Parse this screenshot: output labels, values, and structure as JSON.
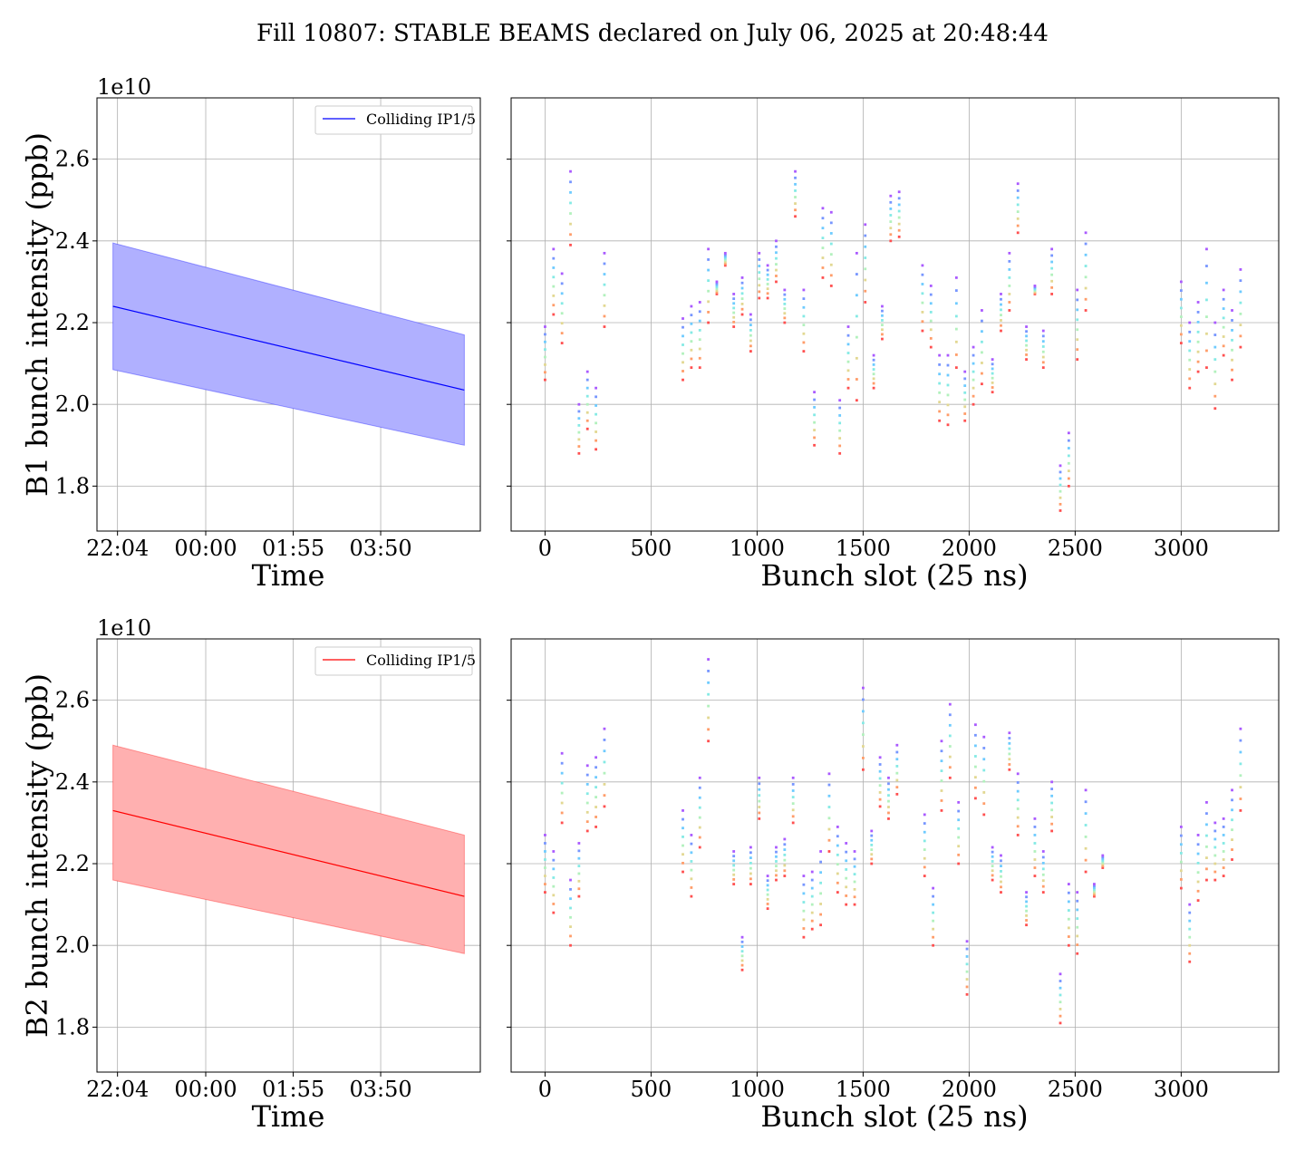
{
  "title": "Fill 10807: STABLE BEAMS declared on July 06, 2025 at 20:48:44",
  "chart_data": [
    {
      "panel": "B1-time",
      "type": "line",
      "ylabel": "B1 bunch intensity (ppb)",
      "xlabel": "Time",
      "y_offset_text": "1e10",
      "xticks": [
        "22:04",
        "00:00",
        "01:55",
        "03:50"
      ],
      "yticks": [
        "1.8",
        "2.0",
        "2.2",
        "2.4",
        "2.6"
      ],
      "ylim": [
        1.69,
        2.75
      ],
      "xlim_hours_from_2104": [
        -0.45,
        7.95
      ],
      "legend": "Colliding IP1/5",
      "line_color": "#0000ff",
      "fill_color": "#b0b0ff",
      "mean": {
        "start": 2.24,
        "end": 2.035
      },
      "upper": {
        "start": 2.395,
        "end": 2.17
      },
      "lower": {
        "start": 2.085,
        "end": 1.9
      },
      "time_range_hours_from_2104": [
        -0.1,
        7.6
      ]
    },
    {
      "panel": "B1-slots",
      "type": "scatter",
      "ylabel": "B1 bunch intensity (ppb)",
      "xlabel": "Bunch slot (25 ns)",
      "xticks": [
        "0",
        "500",
        "1000",
        "1500",
        "2000",
        "2500",
        "3000"
      ],
      "xlim": [
        -160,
        3460
      ],
      "ylim": [
        1.69,
        2.75
      ],
      "trains": [
        [
          0,
          2.06,
          2.19
        ],
        [
          40,
          2.22,
          2.38
        ],
        [
          80,
          2.15,
          2.32
        ],
        [
          120,
          2.39,
          2.57
        ],
        [
          160,
          1.88,
          2.0
        ],
        [
          200,
          1.94,
          2.08
        ],
        [
          240,
          1.89,
          2.04
        ],
        [
          280,
          2.19,
          2.37
        ],
        [
          650,
          2.06,
          2.21
        ],
        [
          690,
          2.09,
          2.24
        ],
        [
          730,
          2.09,
          2.25
        ],
        [
          770,
          2.2,
          2.38
        ],
        [
          810,
          2.27,
          2.3
        ],
        [
          850,
          2.34,
          2.37
        ],
        [
          890,
          2.19,
          2.27
        ],
        [
          930,
          2.22,
          2.31
        ],
        [
          970,
          2.13,
          2.22
        ],
        [
          1010,
          2.26,
          2.37
        ],
        [
          1050,
          2.26,
          2.34
        ],
        [
          1090,
          2.3,
          2.4
        ],
        [
          1130,
          2.2,
          2.28
        ],
        [
          1180,
          2.46,
          2.57
        ],
        [
          1220,
          2.13,
          2.28
        ],
        [
          1270,
          1.9,
          2.03
        ],
        [
          1310,
          2.31,
          2.48
        ],
        [
          1350,
          2.29,
          2.47
        ],
        [
          1390,
          1.88,
          2.01
        ],
        [
          1430,
          2.04,
          2.19
        ],
        [
          1470,
          2.01,
          2.37
        ],
        [
          1510,
          2.25,
          2.44
        ],
        [
          1550,
          2.04,
          2.12
        ],
        [
          1590,
          2.16,
          2.24
        ],
        [
          1630,
          2.4,
          2.51
        ],
        [
          1670,
          2.41,
          2.52
        ],
        [
          1780,
          2.18,
          2.34
        ],
        [
          1820,
          2.14,
          2.29
        ],
        [
          1860,
          1.96,
          2.12
        ],
        [
          1900,
          1.95,
          2.12
        ],
        [
          1940,
          2.09,
          2.31
        ],
        [
          1980,
          1.96,
          2.08
        ],
        [
          2020,
          2.0,
          2.14
        ],
        [
          2060,
          2.05,
          2.23
        ],
        [
          2110,
          2.03,
          2.11
        ],
        [
          2150,
          2.18,
          2.27
        ],
        [
          2190,
          2.23,
          2.37
        ],
        [
          2230,
          2.42,
          2.54
        ],
        [
          2270,
          2.11,
          2.19
        ],
        [
          2310,
          2.27,
          2.29
        ],
        [
          2350,
          2.09,
          2.18
        ],
        [
          2390,
          2.27,
          2.38
        ],
        [
          2430,
          1.74,
          1.85
        ],
        [
          2470,
          1.8,
          1.93
        ],
        [
          2510,
          2.11,
          2.28
        ],
        [
          2550,
          2.23,
          2.42
        ],
        [
          3000,
          2.15,
          2.3
        ],
        [
          3040,
          2.04,
          2.2
        ],
        [
          3080,
          2.08,
          2.25
        ],
        [
          3120,
          2.09,
          2.38
        ],
        [
          3160,
          1.99,
          2.2
        ],
        [
          3200,
          2.12,
          2.28
        ],
        [
          3240,
          2.06,
          2.23
        ],
        [
          3280,
          2.14,
          2.33
        ]
      ]
    },
    {
      "panel": "B2-time",
      "type": "line",
      "ylabel": "B2 bunch intensity (ppb)",
      "xlabel": "Time",
      "y_offset_text": "1e10",
      "xticks": [
        "22:04",
        "00:00",
        "01:55",
        "03:50"
      ],
      "yticks": [
        "1.8",
        "2.0",
        "2.2",
        "2.4",
        "2.6"
      ],
      "ylim": [
        1.69,
        2.75
      ],
      "xlim_hours_from_2104": [
        -0.45,
        7.95
      ],
      "legend": "Colliding IP1/5",
      "line_color": "#ff0000",
      "fill_color": "#ffb0b0",
      "mean": {
        "start": 2.33,
        "end": 2.12
      },
      "upper": {
        "start": 2.49,
        "end": 2.27
      },
      "lower": {
        "start": 2.16,
        "end": 1.98
      },
      "time_range_hours_from_2104": [
        -0.1,
        7.6
      ]
    },
    {
      "panel": "B2-slots",
      "type": "scatter",
      "ylabel": "B2 bunch intensity (ppb)",
      "xlabel": "Bunch slot (25 ns)",
      "xticks": [
        "0",
        "500",
        "1000",
        "1500",
        "2000",
        "2500",
        "3000"
      ],
      "xlim": [
        -160,
        3460
      ],
      "ylim": [
        1.69,
        2.75
      ],
      "trains": [
        [
          0,
          2.13,
          2.27
        ],
        [
          40,
          2.08,
          2.23
        ],
        [
          80,
          2.3,
          2.47
        ],
        [
          120,
          2.0,
          2.16
        ],
        [
          160,
          2.12,
          2.25
        ],
        [
          200,
          2.28,
          2.44
        ],
        [
          240,
          2.29,
          2.46
        ],
        [
          280,
          2.34,
          2.53
        ],
        [
          650,
          2.18,
          2.33
        ],
        [
          690,
          2.12,
          2.27
        ],
        [
          730,
          2.24,
          2.41
        ],
        [
          770,
          2.5,
          2.7
        ],
        [
          890,
          2.15,
          2.23
        ],
        [
          930,
          1.94,
          2.02
        ],
        [
          970,
          2.15,
          2.24
        ],
        [
          1010,
          2.31,
          2.41
        ],
        [
          1050,
          2.09,
          2.17
        ],
        [
          1090,
          2.16,
          2.24
        ],
        [
          1130,
          2.17,
          2.26
        ],
        [
          1170,
          2.3,
          2.41
        ],
        [
          1220,
          2.02,
          2.17
        ],
        [
          1260,
          2.04,
          2.18
        ],
        [
          1300,
          2.05,
          2.23
        ],
        [
          1340,
          2.23,
          2.42
        ],
        [
          1380,
          2.13,
          2.29
        ],
        [
          1420,
          2.1,
          2.25
        ],
        [
          1460,
          2.1,
          2.23
        ],
        [
          1500,
          2.43,
          2.63
        ],
        [
          1540,
          2.2,
          2.28
        ],
        [
          1580,
          2.34,
          2.46
        ],
        [
          1620,
          2.31,
          2.41
        ],
        [
          1660,
          2.37,
          2.49
        ],
        [
          1790,
          2.17,
          2.32
        ],
        [
          1830,
          2.0,
          2.14
        ],
        [
          1870,
          2.33,
          2.5
        ],
        [
          1910,
          2.41,
          2.59
        ],
        [
          1950,
          2.2,
          2.35
        ],
        [
          1990,
          1.88,
          2.01
        ],
        [
          2030,
          2.36,
          2.54
        ],
        [
          2070,
          2.32,
          2.51
        ],
        [
          2110,
          2.16,
          2.24
        ],
        [
          2150,
          2.13,
          2.22
        ],
        [
          2190,
          2.43,
          2.52
        ],
        [
          2230,
          2.27,
          2.42
        ],
        [
          2270,
          2.05,
          2.13
        ],
        [
          2310,
          2.17,
          2.31
        ],
        [
          2350,
          2.13,
          2.23
        ],
        [
          2390,
          2.28,
          2.4
        ],
        [
          2430,
          1.81,
          1.93
        ],
        [
          2470,
          2.0,
          2.15
        ],
        [
          2510,
          1.98,
          2.13
        ],
        [
          2550,
          2.18,
          2.38
        ],
        [
          2590,
          2.12,
          2.15
        ],
        [
          2630,
          2.19,
          2.22
        ],
        [
          3000,
          2.14,
          2.29
        ],
        [
          3040,
          1.96,
          2.1
        ],
        [
          3080,
          2.11,
          2.27
        ],
        [
          3120,
          2.16,
          2.35
        ],
        [
          3160,
          2.16,
          2.3
        ],
        [
          3200,
          2.17,
          2.31
        ],
        [
          3240,
          2.21,
          2.38
        ],
        [
          3280,
          2.33,
          2.53
        ]
      ]
    }
  ]
}
